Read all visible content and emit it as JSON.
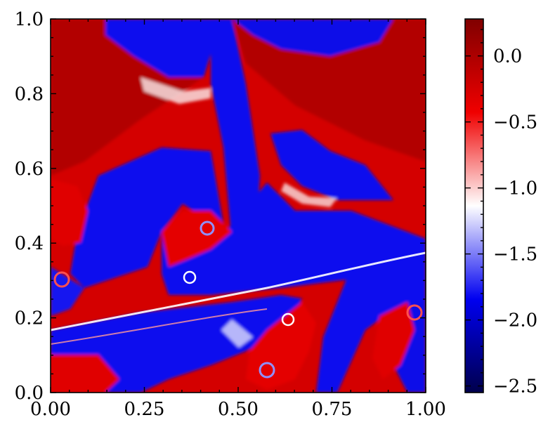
{
  "chart_data": {
    "type": "heatmap",
    "title": "",
    "xlabel": "",
    "ylabel": "",
    "xlim": [
      0.0,
      1.0
    ],
    "ylim": [
      0.0,
      1.0
    ],
    "x_ticks": [
      "0.00",
      "0.25",
      "0.50",
      "0.75",
      "1.00"
    ],
    "y_ticks": [
      "0.0",
      "0.2",
      "0.4",
      "0.6",
      "0.8",
      "1.0"
    ],
    "colorbar": {
      "colormap": "seismic",
      "vmin": -2.55,
      "vmax": 0.28,
      "ticks": [
        "0.0",
        "−0.5",
        "−1.0",
        "−1.5",
        "−2.0",
        "−2.5"
      ],
      "tick_values": [
        0.0,
        -0.5,
        -1.0,
        -1.5,
        -2.0,
        -2.5
      ]
    },
    "colors": {
      "high": "#8b0000",
      "mid": "#ffffff",
      "low": "#00006e",
      "red": "#e00000",
      "blue": "#0000e0"
    }
  }
}
